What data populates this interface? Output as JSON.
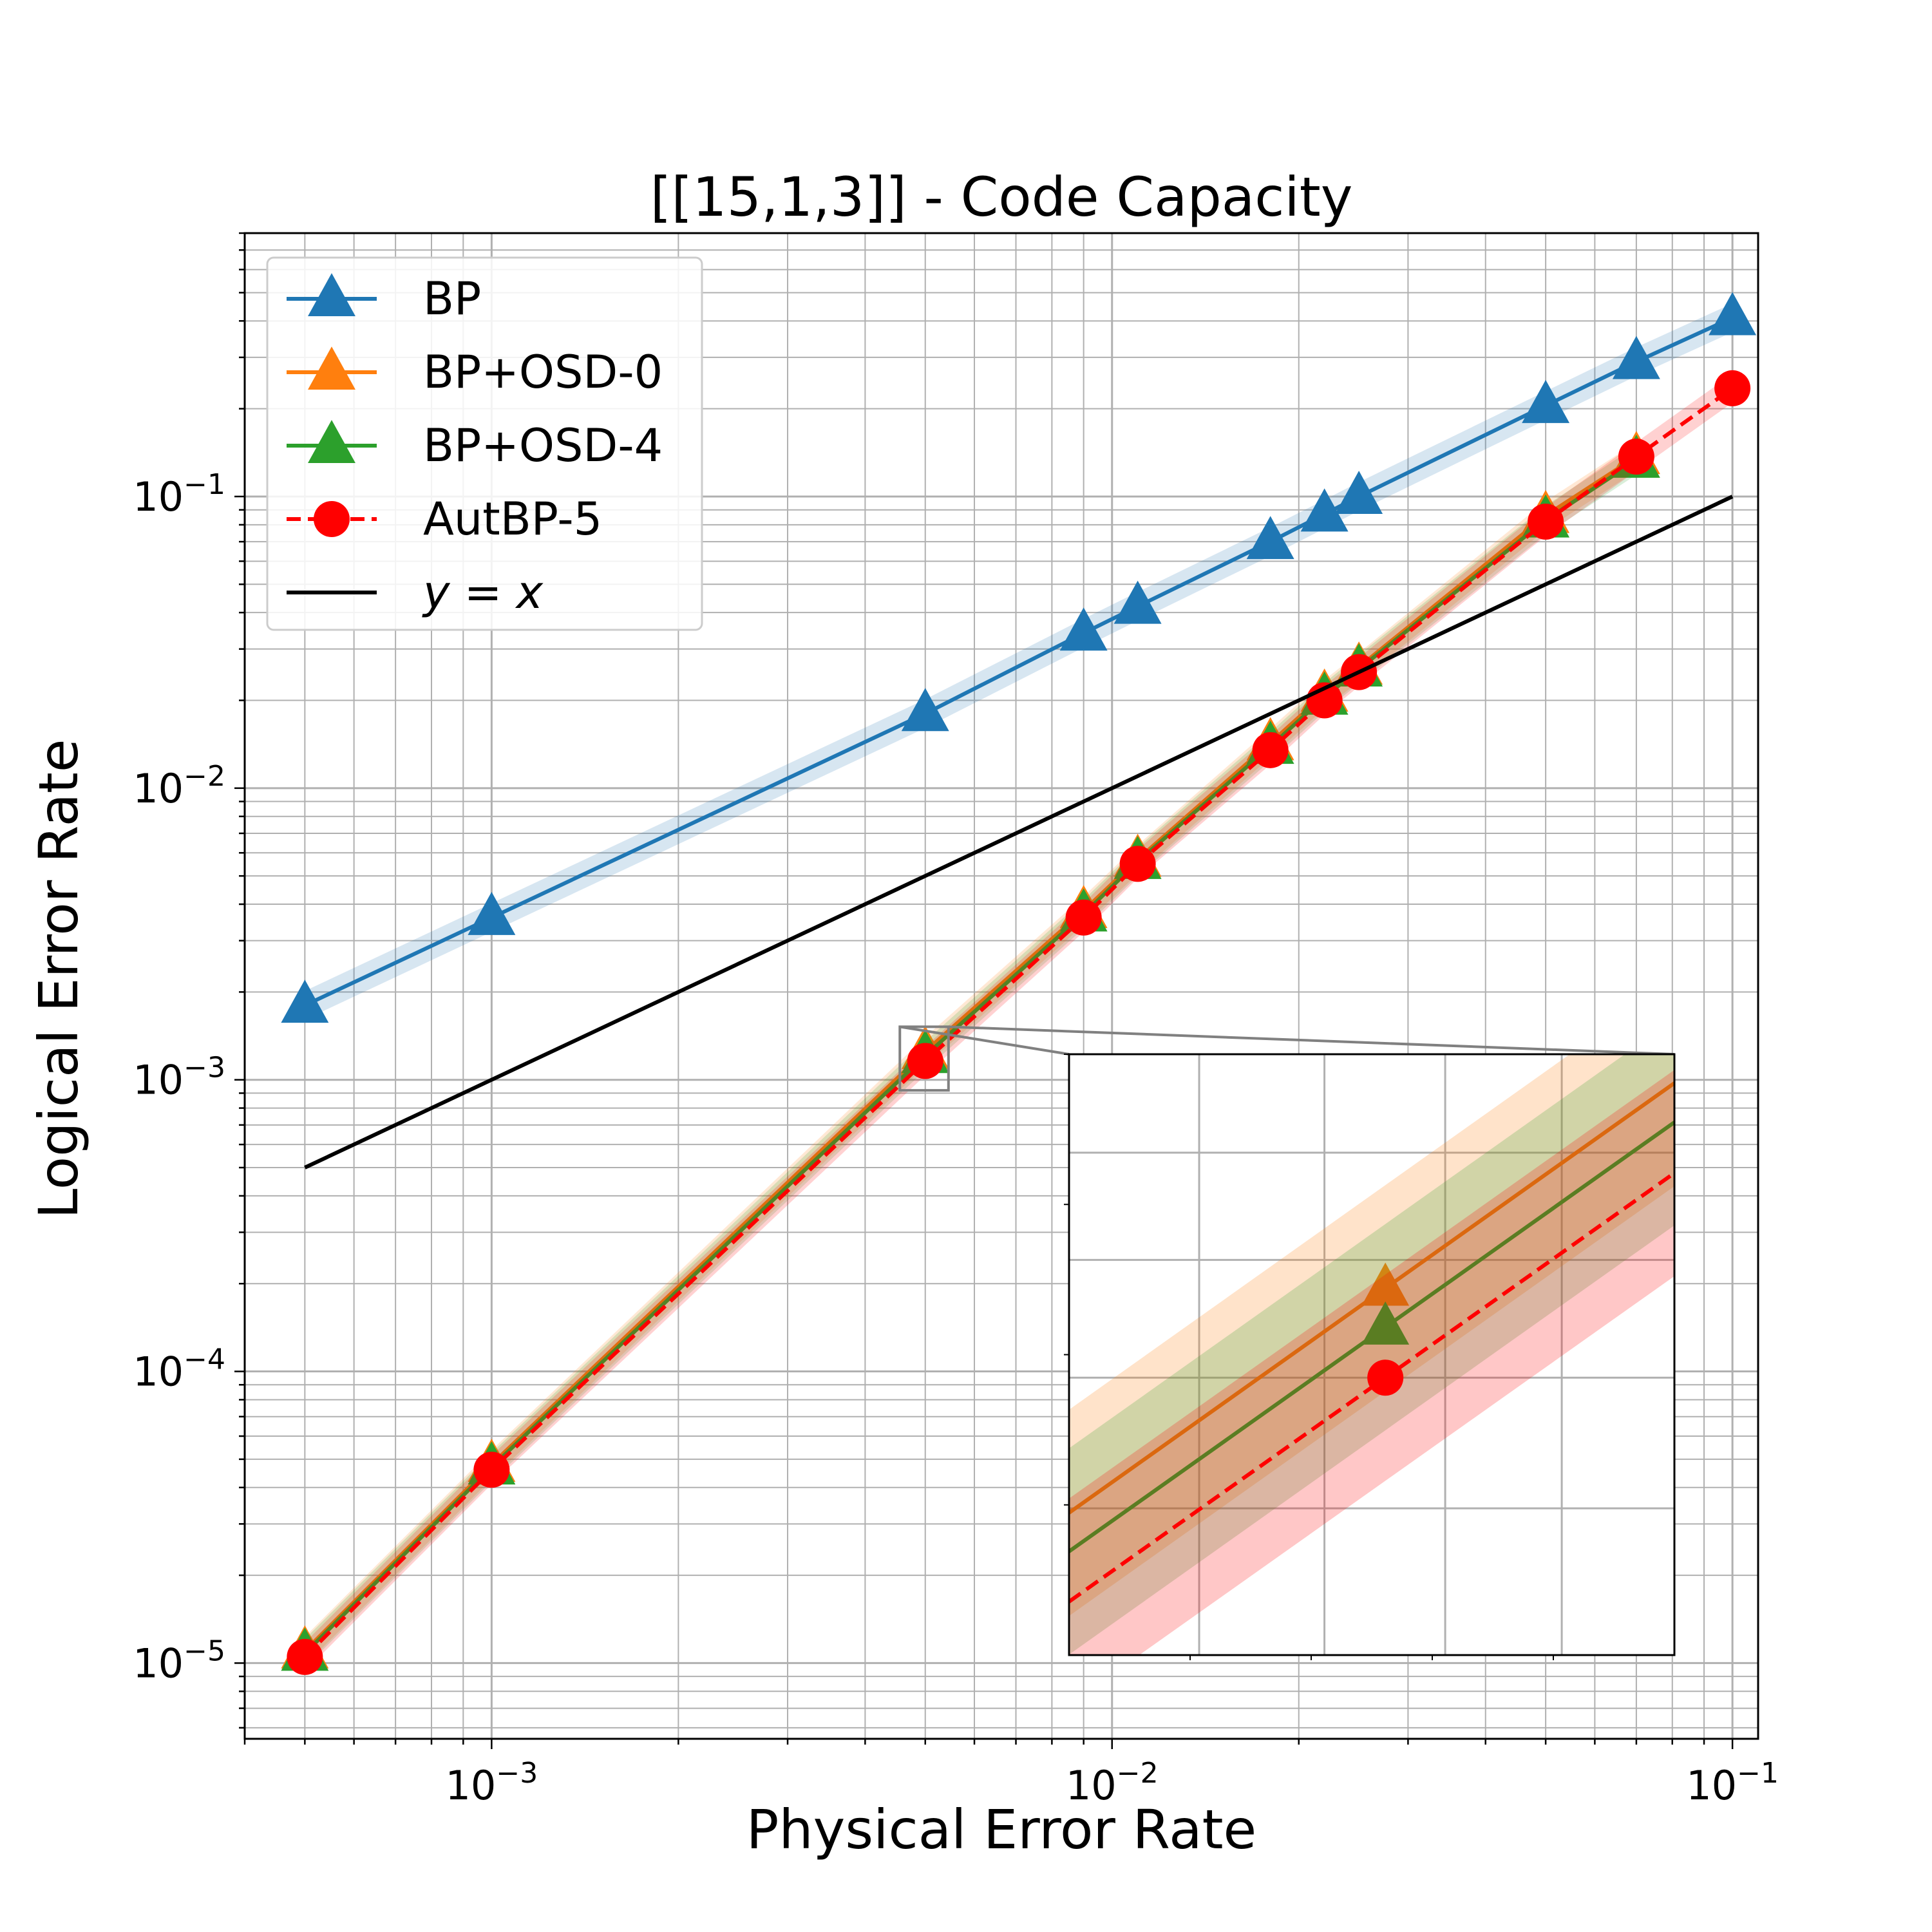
{
  "chart_data": {
    "type": "line",
    "title": "[[15,1,3]] - Code Capacity",
    "xlabel": "Physical Error Rate",
    "ylabel": "Logical Error Rate",
    "xscale": "log",
    "yscale": "log",
    "xlim": [
      0.0004,
      0.11
    ],
    "ylim": [
      5.5e-06,
      0.8
    ],
    "grid": true,
    "legend_position": "top-left",
    "xticks": [
      {
        "value": 0.001,
        "base": "10",
        "exp": "−3"
      },
      {
        "value": 0.01,
        "base": "10",
        "exp": "−2"
      },
      {
        "value": 0.1,
        "base": "10",
        "exp": "−1"
      }
    ],
    "yticks": [
      {
        "value": 1e-05,
        "base": "10",
        "exp": "−5"
      },
      {
        "value": 0.0001,
        "base": "10",
        "exp": "−4"
      },
      {
        "value": 0.001,
        "base": "10",
        "exp": "−3"
      },
      {
        "value": 0.01,
        "base": "10",
        "exp": "−2"
      },
      {
        "value": 0.1,
        "base": "10",
        "exp": "−1"
      }
    ],
    "series": [
      {
        "name": "BP",
        "color": "#1f77b4",
        "marker": "triangle",
        "dash": "solid",
        "x": [
          0.0005,
          0.001,
          0.005,
          0.009,
          0.011,
          0.018,
          0.022,
          0.025,
          0.05,
          0.07,
          0.1
        ],
        "y": [
          0.0018,
          0.0036,
          0.018,
          0.034,
          0.042,
          0.07,
          0.087,
          0.1,
          0.205,
          0.29,
          0.41
        ]
      },
      {
        "name": "BP+OSD-0",
        "color": "#ff7f0e",
        "marker": "triangle",
        "dash": "solid",
        "x": [
          0.0005,
          0.001,
          0.005,
          0.009,
          0.011,
          0.018,
          0.022,
          0.025,
          0.05,
          0.07
        ],
        "y": [
          1.1e-05,
          4.8e-05,
          0.00125,
          0.0038,
          0.0057,
          0.0143,
          0.021,
          0.026,
          0.086,
          0.137
        ]
      },
      {
        "name": "BP+OSD-4",
        "color": "#2ca02c",
        "marker": "triangle",
        "dash": "solid",
        "x": [
          0.0005,
          0.001,
          0.005,
          0.009,
          0.011,
          0.018,
          0.022,
          0.025,
          0.05,
          0.07
        ],
        "y": [
          1.08e-05,
          4.7e-05,
          0.00121,
          0.0037,
          0.0056,
          0.0139,
          0.0205,
          0.0256,
          0.083,
          0.133
        ]
      },
      {
        "name": "AutBP-5",
        "color": "#ff0000",
        "marker": "circle",
        "dash": "dashed",
        "x": [
          0.0005,
          0.001,
          0.005,
          0.009,
          0.011,
          0.018,
          0.022,
          0.025,
          0.05,
          0.07,
          0.1
        ],
        "y": [
          1.05e-05,
          4.6e-05,
          0.00116,
          0.0036,
          0.0055,
          0.0135,
          0.02,
          0.025,
          0.082,
          0.137,
          0.235
        ]
      },
      {
        "name": "y = x",
        "color": "#000000",
        "marker": "none",
        "dash": "solid",
        "x": [
          0.0005,
          0.1
        ],
        "y": [
          0.0005,
          0.1
        ]
      }
    ],
    "legend": [
      {
        "label_main": "BP",
        "series": 0
      },
      {
        "label_main": "BP+OSD-0",
        "series": 1
      },
      {
        "label_main": "BP+OSD-4",
        "series": 2
      },
      {
        "label_main": "AutBP-5",
        "series": 3
      },
      {
        "label_main": "y",
        "label_eq": " = ",
        "label_var": "x",
        "series": 4
      }
    ],
    "inset": {
      "zoom_region": {
        "x": [
          0.00455,
          0.00545
        ],
        "y": [
          0.00092,
          0.00152
        ]
      },
      "points": [
        {
          "series": 1,
          "x": 0.005,
          "y": 0.00125
        },
        {
          "series": 2,
          "x": 0.005,
          "y": 0.00121
        },
        {
          "series": 3,
          "x": 0.005,
          "y": 0.00116
        }
      ]
    }
  }
}
